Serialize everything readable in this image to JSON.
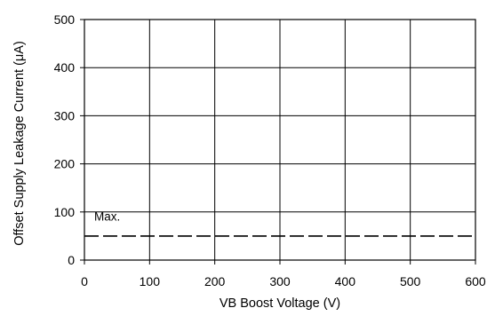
{
  "chart_data": {
    "type": "line",
    "title": "",
    "xlabel": "VB Boost Voltage (V)",
    "ylabel": "Offset Supply Leakage Current (μA)",
    "xlim": [
      0,
      600
    ],
    "ylim": [
      0,
      500
    ],
    "x_ticks": [
      "0",
      "100",
      "200",
      "300",
      "400",
      "500",
      "600"
    ],
    "y_ticks": [
      "0",
      "100",
      "200",
      "300",
      "400",
      "500"
    ],
    "grid": true,
    "series": [
      {
        "name": "Max.",
        "style": "dashed",
        "color": "#000000",
        "x": [
          0,
          600
        ],
        "y": [
          50,
          50
        ]
      }
    ],
    "annotations": [
      {
        "text": "Max.",
        "x": 15,
        "y": 82
      }
    ]
  }
}
